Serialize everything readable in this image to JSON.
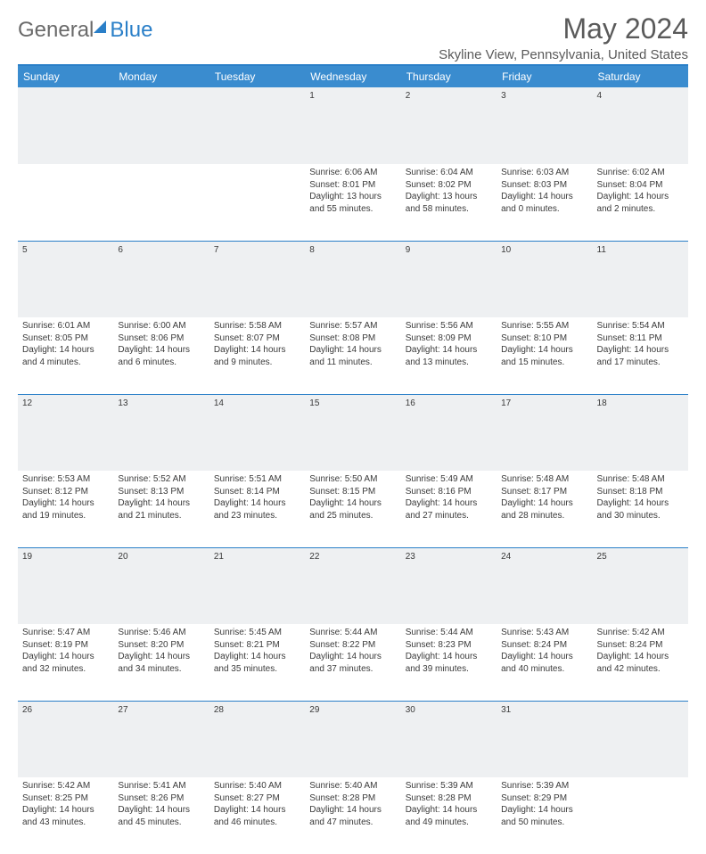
{
  "logo": {
    "general": "General",
    "blue": "Blue"
  },
  "title": "May 2024",
  "location": "Skyline View, Pennsylvania, United States",
  "headers": [
    "Sunday",
    "Monday",
    "Tuesday",
    "Wednesday",
    "Thursday",
    "Friday",
    "Saturday"
  ],
  "colors": {
    "header_bg": "#3a8ccf",
    "border": "#2a7fc8",
    "daynum_bg": "#eef0f2",
    "text": "#3a3a3a",
    "title_text": "#5a5a5a"
  },
  "weeks": [
    {
      "nums": [
        "",
        "",
        "",
        "1",
        "2",
        "3",
        "4"
      ],
      "info": [
        "",
        "",
        "",
        "Sunrise: 6:06 AM\nSunset: 8:01 PM\nDaylight: 13 hours and 55 minutes.",
        "Sunrise: 6:04 AM\nSunset: 8:02 PM\nDaylight: 13 hours and 58 minutes.",
        "Sunrise: 6:03 AM\nSunset: 8:03 PM\nDaylight: 14 hours and 0 minutes.",
        "Sunrise: 6:02 AM\nSunset: 8:04 PM\nDaylight: 14 hours and 2 minutes."
      ]
    },
    {
      "nums": [
        "5",
        "6",
        "7",
        "8",
        "9",
        "10",
        "11"
      ],
      "info": [
        "Sunrise: 6:01 AM\nSunset: 8:05 PM\nDaylight: 14 hours and 4 minutes.",
        "Sunrise: 6:00 AM\nSunset: 8:06 PM\nDaylight: 14 hours and 6 minutes.",
        "Sunrise: 5:58 AM\nSunset: 8:07 PM\nDaylight: 14 hours and 9 minutes.",
        "Sunrise: 5:57 AM\nSunset: 8:08 PM\nDaylight: 14 hours and 11 minutes.",
        "Sunrise: 5:56 AM\nSunset: 8:09 PM\nDaylight: 14 hours and 13 minutes.",
        "Sunrise: 5:55 AM\nSunset: 8:10 PM\nDaylight: 14 hours and 15 minutes.",
        "Sunrise: 5:54 AM\nSunset: 8:11 PM\nDaylight: 14 hours and 17 minutes."
      ]
    },
    {
      "nums": [
        "12",
        "13",
        "14",
        "15",
        "16",
        "17",
        "18"
      ],
      "info": [
        "Sunrise: 5:53 AM\nSunset: 8:12 PM\nDaylight: 14 hours and 19 minutes.",
        "Sunrise: 5:52 AM\nSunset: 8:13 PM\nDaylight: 14 hours and 21 minutes.",
        "Sunrise: 5:51 AM\nSunset: 8:14 PM\nDaylight: 14 hours and 23 minutes.",
        "Sunrise: 5:50 AM\nSunset: 8:15 PM\nDaylight: 14 hours and 25 minutes.",
        "Sunrise: 5:49 AM\nSunset: 8:16 PM\nDaylight: 14 hours and 27 minutes.",
        "Sunrise: 5:48 AM\nSunset: 8:17 PM\nDaylight: 14 hours and 28 minutes.",
        "Sunrise: 5:48 AM\nSunset: 8:18 PM\nDaylight: 14 hours and 30 minutes."
      ]
    },
    {
      "nums": [
        "19",
        "20",
        "21",
        "22",
        "23",
        "24",
        "25"
      ],
      "info": [
        "Sunrise: 5:47 AM\nSunset: 8:19 PM\nDaylight: 14 hours and 32 minutes.",
        "Sunrise: 5:46 AM\nSunset: 8:20 PM\nDaylight: 14 hours and 34 minutes.",
        "Sunrise: 5:45 AM\nSunset: 8:21 PM\nDaylight: 14 hours and 35 minutes.",
        "Sunrise: 5:44 AM\nSunset: 8:22 PM\nDaylight: 14 hours and 37 minutes.",
        "Sunrise: 5:44 AM\nSunset: 8:23 PM\nDaylight: 14 hours and 39 minutes.",
        "Sunrise: 5:43 AM\nSunset: 8:24 PM\nDaylight: 14 hours and 40 minutes.",
        "Sunrise: 5:42 AM\nSunset: 8:24 PM\nDaylight: 14 hours and 42 minutes."
      ]
    },
    {
      "nums": [
        "26",
        "27",
        "28",
        "29",
        "30",
        "31",
        ""
      ],
      "info": [
        "Sunrise: 5:42 AM\nSunset: 8:25 PM\nDaylight: 14 hours and 43 minutes.",
        "Sunrise: 5:41 AM\nSunset: 8:26 PM\nDaylight: 14 hours and 45 minutes.",
        "Sunrise: 5:40 AM\nSunset: 8:27 PM\nDaylight: 14 hours and 46 minutes.",
        "Sunrise: 5:40 AM\nSunset: 8:28 PM\nDaylight: 14 hours and 47 minutes.",
        "Sunrise: 5:39 AM\nSunset: 8:28 PM\nDaylight: 14 hours and 49 minutes.",
        "Sunrise: 5:39 AM\nSunset: 8:29 PM\nDaylight: 14 hours and 50 minutes.",
        ""
      ]
    }
  ]
}
